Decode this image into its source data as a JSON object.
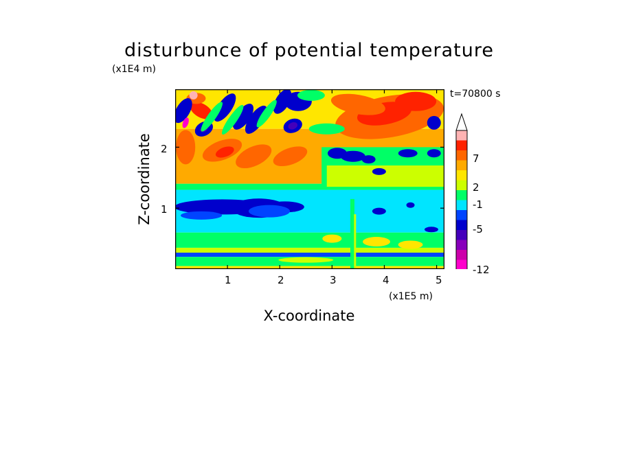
{
  "chart_data": {
    "type": "heatmap",
    "title": "disturbunce of potential temperature",
    "xlabel": "X-coordinate",
    "ylabel": "Z-coordinate",
    "x_unit": "(x1E5 m)",
    "y_unit": "(x1E4 m)",
    "time_label": "t=70800 s",
    "xlim": [
      0,
      5.15
    ],
    "ylim": [
      0,
      2.95
    ],
    "x_ticks": [
      "1",
      "2",
      "3",
      "4",
      "5"
    ],
    "y_ticks": [
      "1",
      "2"
    ],
    "colorbar": {
      "levels_shown": [
        "7",
        "2",
        "-1",
        "-5",
        "-12"
      ],
      "colors": [
        "#ff00cc",
        "#cc00aa",
        "#8800bb",
        "#4400bb",
        "#0000cc",
        "#0044ff",
        "#00e5ff",
        "#00ff66",
        "#ccff00",
        "#ffe600",
        "#ffaa00",
        "#ff6600",
        "#ff2200",
        "#ffb3b3"
      ],
      "extend": "max"
    },
    "bands": [
      {
        "z_range": [
          0,
          0.05
        ],
        "value": "2"
      },
      {
        "z_range": [
          0.05,
          0.2
        ],
        "value": "1"
      },
      {
        "z_range": [
          0.2,
          0.3
        ],
        "value": "-5"
      },
      {
        "z_range": [
          0.3,
          0.6
        ],
        "value": "0"
      },
      {
        "z_range": [
          0.6,
          1.4
        ],
        "value": "-1"
      },
      {
        "z_range": [
          1.4,
          2.3
        ],
        "value": "4"
      },
      {
        "z_range": [
          2.3,
          2.95
        ],
        "value": "2"
      }
    ]
  }
}
